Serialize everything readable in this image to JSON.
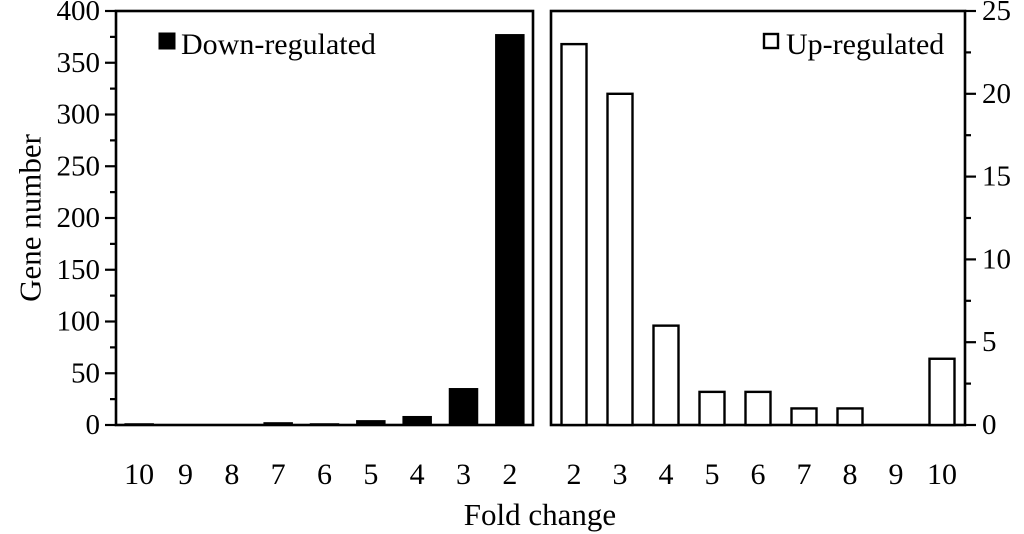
{
  "figure": {
    "xlabel": "Fold change",
    "ylabel_left": "Gene number",
    "background_color": "#ffffff",
    "line_color": "#000000"
  },
  "chart_data": [
    {
      "type": "bar",
      "panel": "left",
      "legend": "Down-regulated",
      "legend_marker": "filled-black-square",
      "legend_position": "top-left-inside",
      "categories": [
        "10",
        "9",
        "8",
        "7",
        "6",
        "5",
        "4",
        "3",
        "2"
      ],
      "values": [
        1,
        0,
        0,
        2,
        1,
        4,
        8,
        35,
        377
      ],
      "xlabel": "Fold change",
      "ylabel": "Gene number",
      "yaxis_side": "left",
      "ylim": [
        0,
        400
      ],
      "ytick_step": 50,
      "ytick_minor_step": 25,
      "ytick_labels": [
        "0",
        "50",
        "100",
        "150",
        "200",
        "250",
        "300",
        "350",
        "400"
      ],
      "bar_fill": "#000000",
      "bar_stroke": "#000000",
      "grid": false
    },
    {
      "type": "bar",
      "panel": "right",
      "legend": "Up-regulated",
      "legend_marker": "open-white-square",
      "legend_position": "top-right-inside",
      "categories": [
        "2",
        "3",
        "4",
        "5",
        "6",
        "7",
        "8",
        "9",
        "10"
      ],
      "values": [
        23,
        20,
        6,
        2,
        2,
        1,
        1,
        0,
        4
      ],
      "xlabel": "Fold change",
      "ylabel": "",
      "yaxis_side": "right",
      "ylim": [
        0,
        25
      ],
      "ytick_step": 5,
      "ytick_minor_step": 2.5,
      "ytick_labels": [
        "0",
        "5",
        "10",
        "15",
        "20",
        "25"
      ],
      "bar_fill": "#ffffff",
      "bar_stroke": "#000000",
      "grid": false
    }
  ]
}
